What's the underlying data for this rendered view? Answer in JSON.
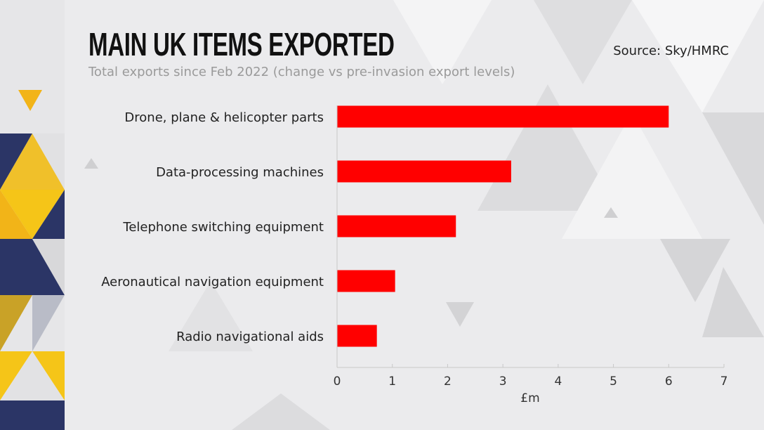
{
  "header": {
    "title": "MAIN UK ITEMS EXPORTED",
    "subtitle": "Total exports since Feb 2022 (change vs pre-invasion export levels)",
    "source": "Source: Sky/HMRC"
  },
  "colors": {
    "bar": "#ff0000",
    "navy": "#2b3566",
    "yellow": "#f5c518"
  },
  "chart_data": {
    "type": "bar",
    "orientation": "horizontal",
    "categories": [
      "Drone, plane & helicopter parts",
      "Data-processing machines",
      "Telephone switching equipment",
      "Aeronautical navigation equipment",
      "Radio navigational aids"
    ],
    "values": [
      6.0,
      3.15,
      2.15,
      1.05,
      0.72
    ],
    "xlabel": "£m",
    "ylabel": "",
    "xlim": [
      0,
      7
    ],
    "xticks": [
      "0",
      "1",
      "2",
      "3",
      "4",
      "5",
      "6",
      "7"
    ],
    "grid": false
  }
}
